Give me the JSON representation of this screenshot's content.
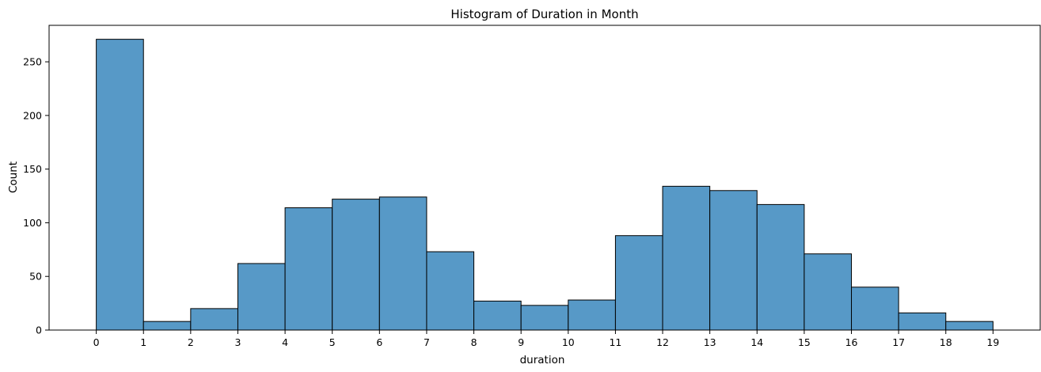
{
  "chart_data": {
    "type": "bar",
    "title": "Histogram of Duration in Month",
    "xlabel": "duration",
    "ylabel": "Count",
    "bin_edges": [
      0,
      1,
      2,
      3,
      4,
      5,
      6,
      7,
      8,
      9,
      10,
      11,
      12,
      13,
      14,
      15,
      16,
      17,
      18,
      19
    ],
    "values": [
      271,
      8,
      20,
      62,
      114,
      122,
      124,
      73,
      27,
      23,
      28,
      88,
      134,
      130,
      117,
      71,
      40,
      16,
      8
    ],
    "xticks": [
      0,
      1,
      2,
      3,
      4,
      5,
      6,
      7,
      8,
      9,
      10,
      11,
      12,
      13,
      14,
      15,
      16,
      17,
      18,
      19
    ],
    "yticks": [
      0,
      50,
      100,
      150,
      200,
      250
    ],
    "xlim": [
      -1,
      20
    ],
    "ylim": [
      0,
      284
    ],
    "grid": false,
    "bar_color": "#5799c7",
    "edge_color": "#000000"
  }
}
